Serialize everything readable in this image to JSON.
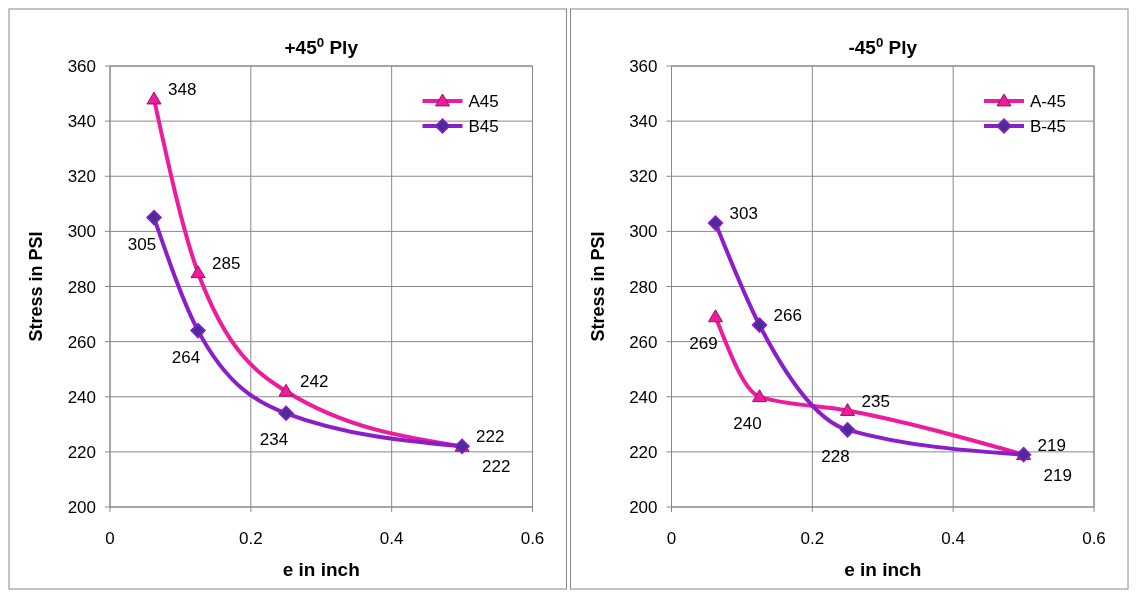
{
  "chart_data": [
    {
      "type": "line",
      "title": "+45$^{0}$ Ply",
      "xlabel": "e in inch",
      "ylabel": "Stress in PSI",
      "x": [
        0.0625,
        0.125,
        0.25,
        0.5
      ],
      "xlim": [
        0,
        0.6
      ],
      "xticks": [
        0,
        0.2,
        0.4,
        0.6
      ],
      "ylim": [
        200,
        360
      ],
      "yticks": [
        200,
        220,
        240,
        260,
        280,
        300,
        320,
        340,
        360
      ],
      "grid": true,
      "legend": "top right",
      "data_labels": true,
      "series": [
        {
          "name": "A45",
          "color": "#ec1c9c",
          "marker": "triangle",
          "values": [
            348,
            285,
            242,
            222
          ]
        },
        {
          "name": "B45",
          "color": "#8a1ec8",
          "marker": "diamond",
          "values": [
            305,
            264,
            234,
            222
          ]
        }
      ]
    },
    {
      "type": "line",
      "title": "-45$^{0}$ Ply",
      "xlabel": "e in inch",
      "ylabel": "Stress in PSI",
      "x": [
        0.0625,
        0.125,
        0.25,
        0.5
      ],
      "xlim": [
        0,
        0.6
      ],
      "xticks": [
        0,
        0.2,
        0.4,
        0.6
      ],
      "ylim": [
        200,
        360
      ],
      "yticks": [
        200,
        220,
        240,
        260,
        280,
        300,
        320,
        340,
        360
      ],
      "grid": true,
      "legend": "top right",
      "data_labels": true,
      "series": [
        {
          "name": "A-45",
          "color": "#ec1c9c",
          "marker": "triangle",
          "values": [
            269,
            240,
            235,
            219
          ]
        },
        {
          "name": "B-45",
          "color": "#8a1ec8",
          "marker": "diamond",
          "values": [
            303,
            266,
            228,
            219
          ]
        }
      ]
    }
  ]
}
